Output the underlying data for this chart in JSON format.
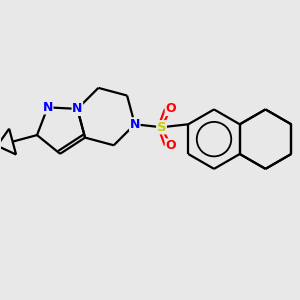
{
  "bg_color": "#e8e8e8",
  "bond_color": "#000000",
  "N_color": "#0000ff",
  "O_color": "#ff0000",
  "S_color": "#cccc00",
  "lw": 1.6,
  "figsize": [
    3.0,
    3.0
  ],
  "dpi": 100,
  "xlim": [
    20,
    280
  ],
  "ylim": [
    80,
    265
  ]
}
